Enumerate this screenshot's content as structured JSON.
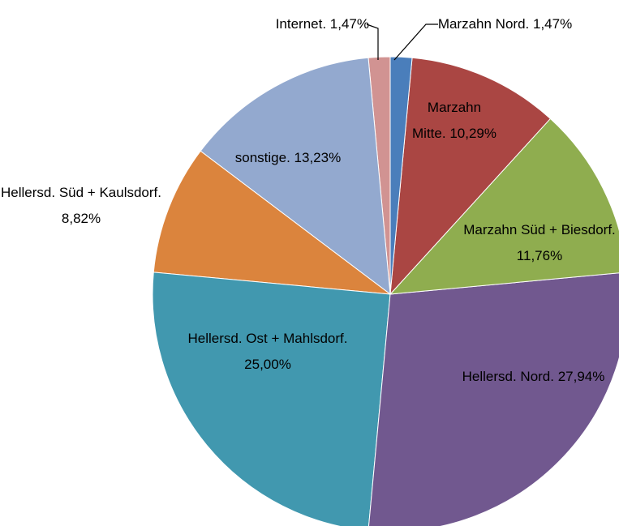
{
  "chart_data": {
    "type": "pie",
    "categories": [
      "Marzahn Nord.",
      "Marzahn Mitte.",
      "Marzahn Süd + Biesdorf.",
      "Hellersd. Nord.",
      "Hellersd. Ost + Mahlsdorf.",
      "Hellersd. Süd + Kaulsdorf.",
      "sonstige.",
      "Internet."
    ],
    "values": [
      1.47,
      10.29,
      11.76,
      27.94,
      25.0,
      8.82,
      13.23,
      1.47
    ],
    "value_labels": [
      "1,47%",
      "10,29%",
      "11,76%",
      "27,94%",
      "25,00%",
      "8,82%",
      "13,23%",
      "1,47%"
    ],
    "colors": [
      "#4a7ebb",
      "#aa4643",
      "#8fad4f",
      "#71588f",
      "#4198af",
      "#db843d",
      "#93a9cf",
      "#d19392"
    ]
  }
}
